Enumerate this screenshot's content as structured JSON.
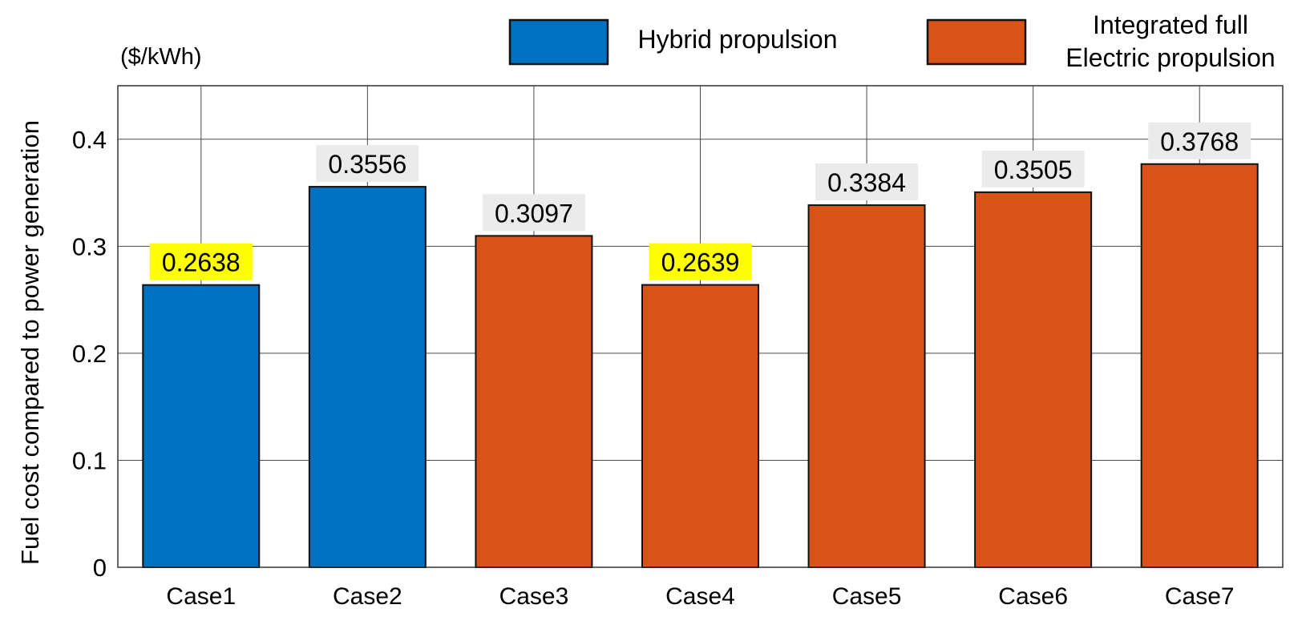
{
  "chart_data": {
    "type": "bar",
    "unit_label": "($/kWh)",
    "ylabel": "Fuel cost compared to power generation",
    "xlabel": "",
    "ylim": [
      0,
      0.45
    ],
    "yticks": [
      0,
      0.1,
      0.2,
      0.3,
      0.4
    ],
    "ytick_labels": [
      "0",
      "0.1",
      "0.2",
      "0.3",
      "0.4"
    ],
    "grid": true,
    "legend_position": "top",
    "categories": [
      "Case1",
      "Case2",
      "Case3",
      "Case4",
      "Case5",
      "Case6",
      "Case7"
    ],
    "values": [
      0.2638,
      0.3556,
      0.3097,
      0.2639,
      0.3384,
      0.3505,
      0.3768
    ],
    "value_labels": [
      "0.2638",
      "0.3556",
      "0.3097",
      "0.2639",
      "0.3384",
      "0.3505",
      "0.3768"
    ],
    "bar_group": [
      "hybrid",
      "hybrid",
      "electric",
      "electric",
      "electric",
      "electric",
      "electric"
    ],
    "highlighted": [
      true,
      false,
      false,
      true,
      false,
      false,
      false
    ],
    "legend": [
      {
        "key": "hybrid",
        "lines": [
          "Hybrid propulsion"
        ],
        "color": "#0070C0"
      },
      {
        "key": "electric",
        "lines": [
          "Integrated full",
          "Electric propulsion"
        ],
        "color": "#D95319"
      }
    ],
    "colors": {
      "hybrid": "#0070C0",
      "electric": "#D95319",
      "highlight": "#FFFF00",
      "label_bg": "#EBEBEB",
      "grid": "#4a4a4a"
    }
  }
}
